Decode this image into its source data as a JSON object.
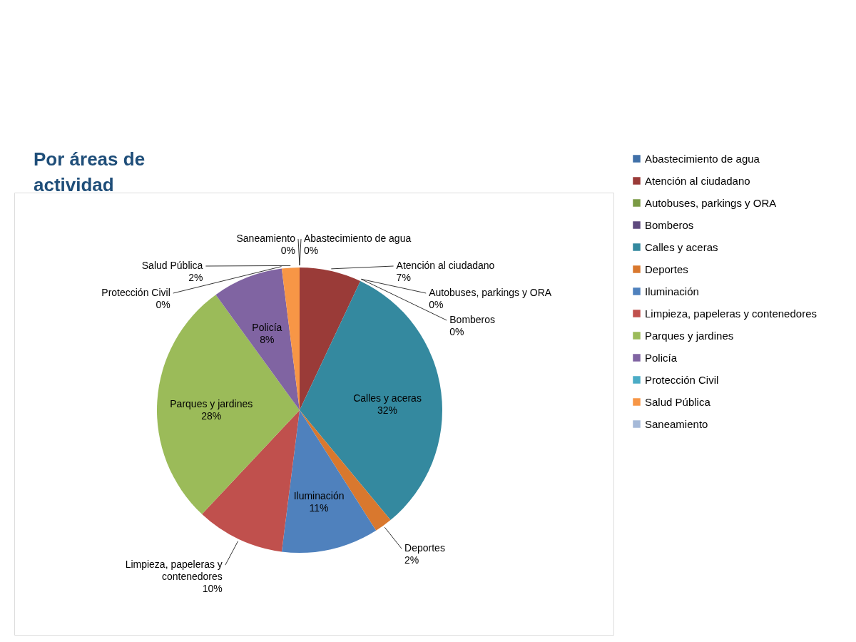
{
  "chart_data": {
    "type": "pie",
    "title": "Por áreas de actividad",
    "categories": [
      "Abastecimiento de agua",
      "Atención al ciudadano",
      "Autobuses, parkings y ORA",
      "Bomberos",
      "Calles y aceras",
      "Deportes",
      "Iluminación",
      "Limpieza, papeleras y contenedores",
      "Parques y jardines",
      "Policía",
      "Protección Civil",
      "Salud Pública",
      "Saneamiento"
    ],
    "values": [
      0,
      7,
      0,
      0,
      32,
      2,
      11,
      10,
      28,
      8,
      0,
      2,
      0
    ],
    "value_labels": [
      "0%",
      "7%",
      "0%",
      "0%",
      "32%",
      "2%",
      "11%",
      "10%",
      "28%",
      "8%",
      "0%",
      "2%",
      "0%"
    ],
    "colors": [
      "#4070a8",
      "#9a3b38",
      "#7a9a44",
      "#5e4a7e",
      "#34899f",
      "#d9782e",
      "#4f81bd",
      "#c0504d",
      "#9bbb59",
      "#8064a2",
      "#4bacc6",
      "#f79646",
      "#a5b9d8"
    ],
    "legend": "right"
  }
}
